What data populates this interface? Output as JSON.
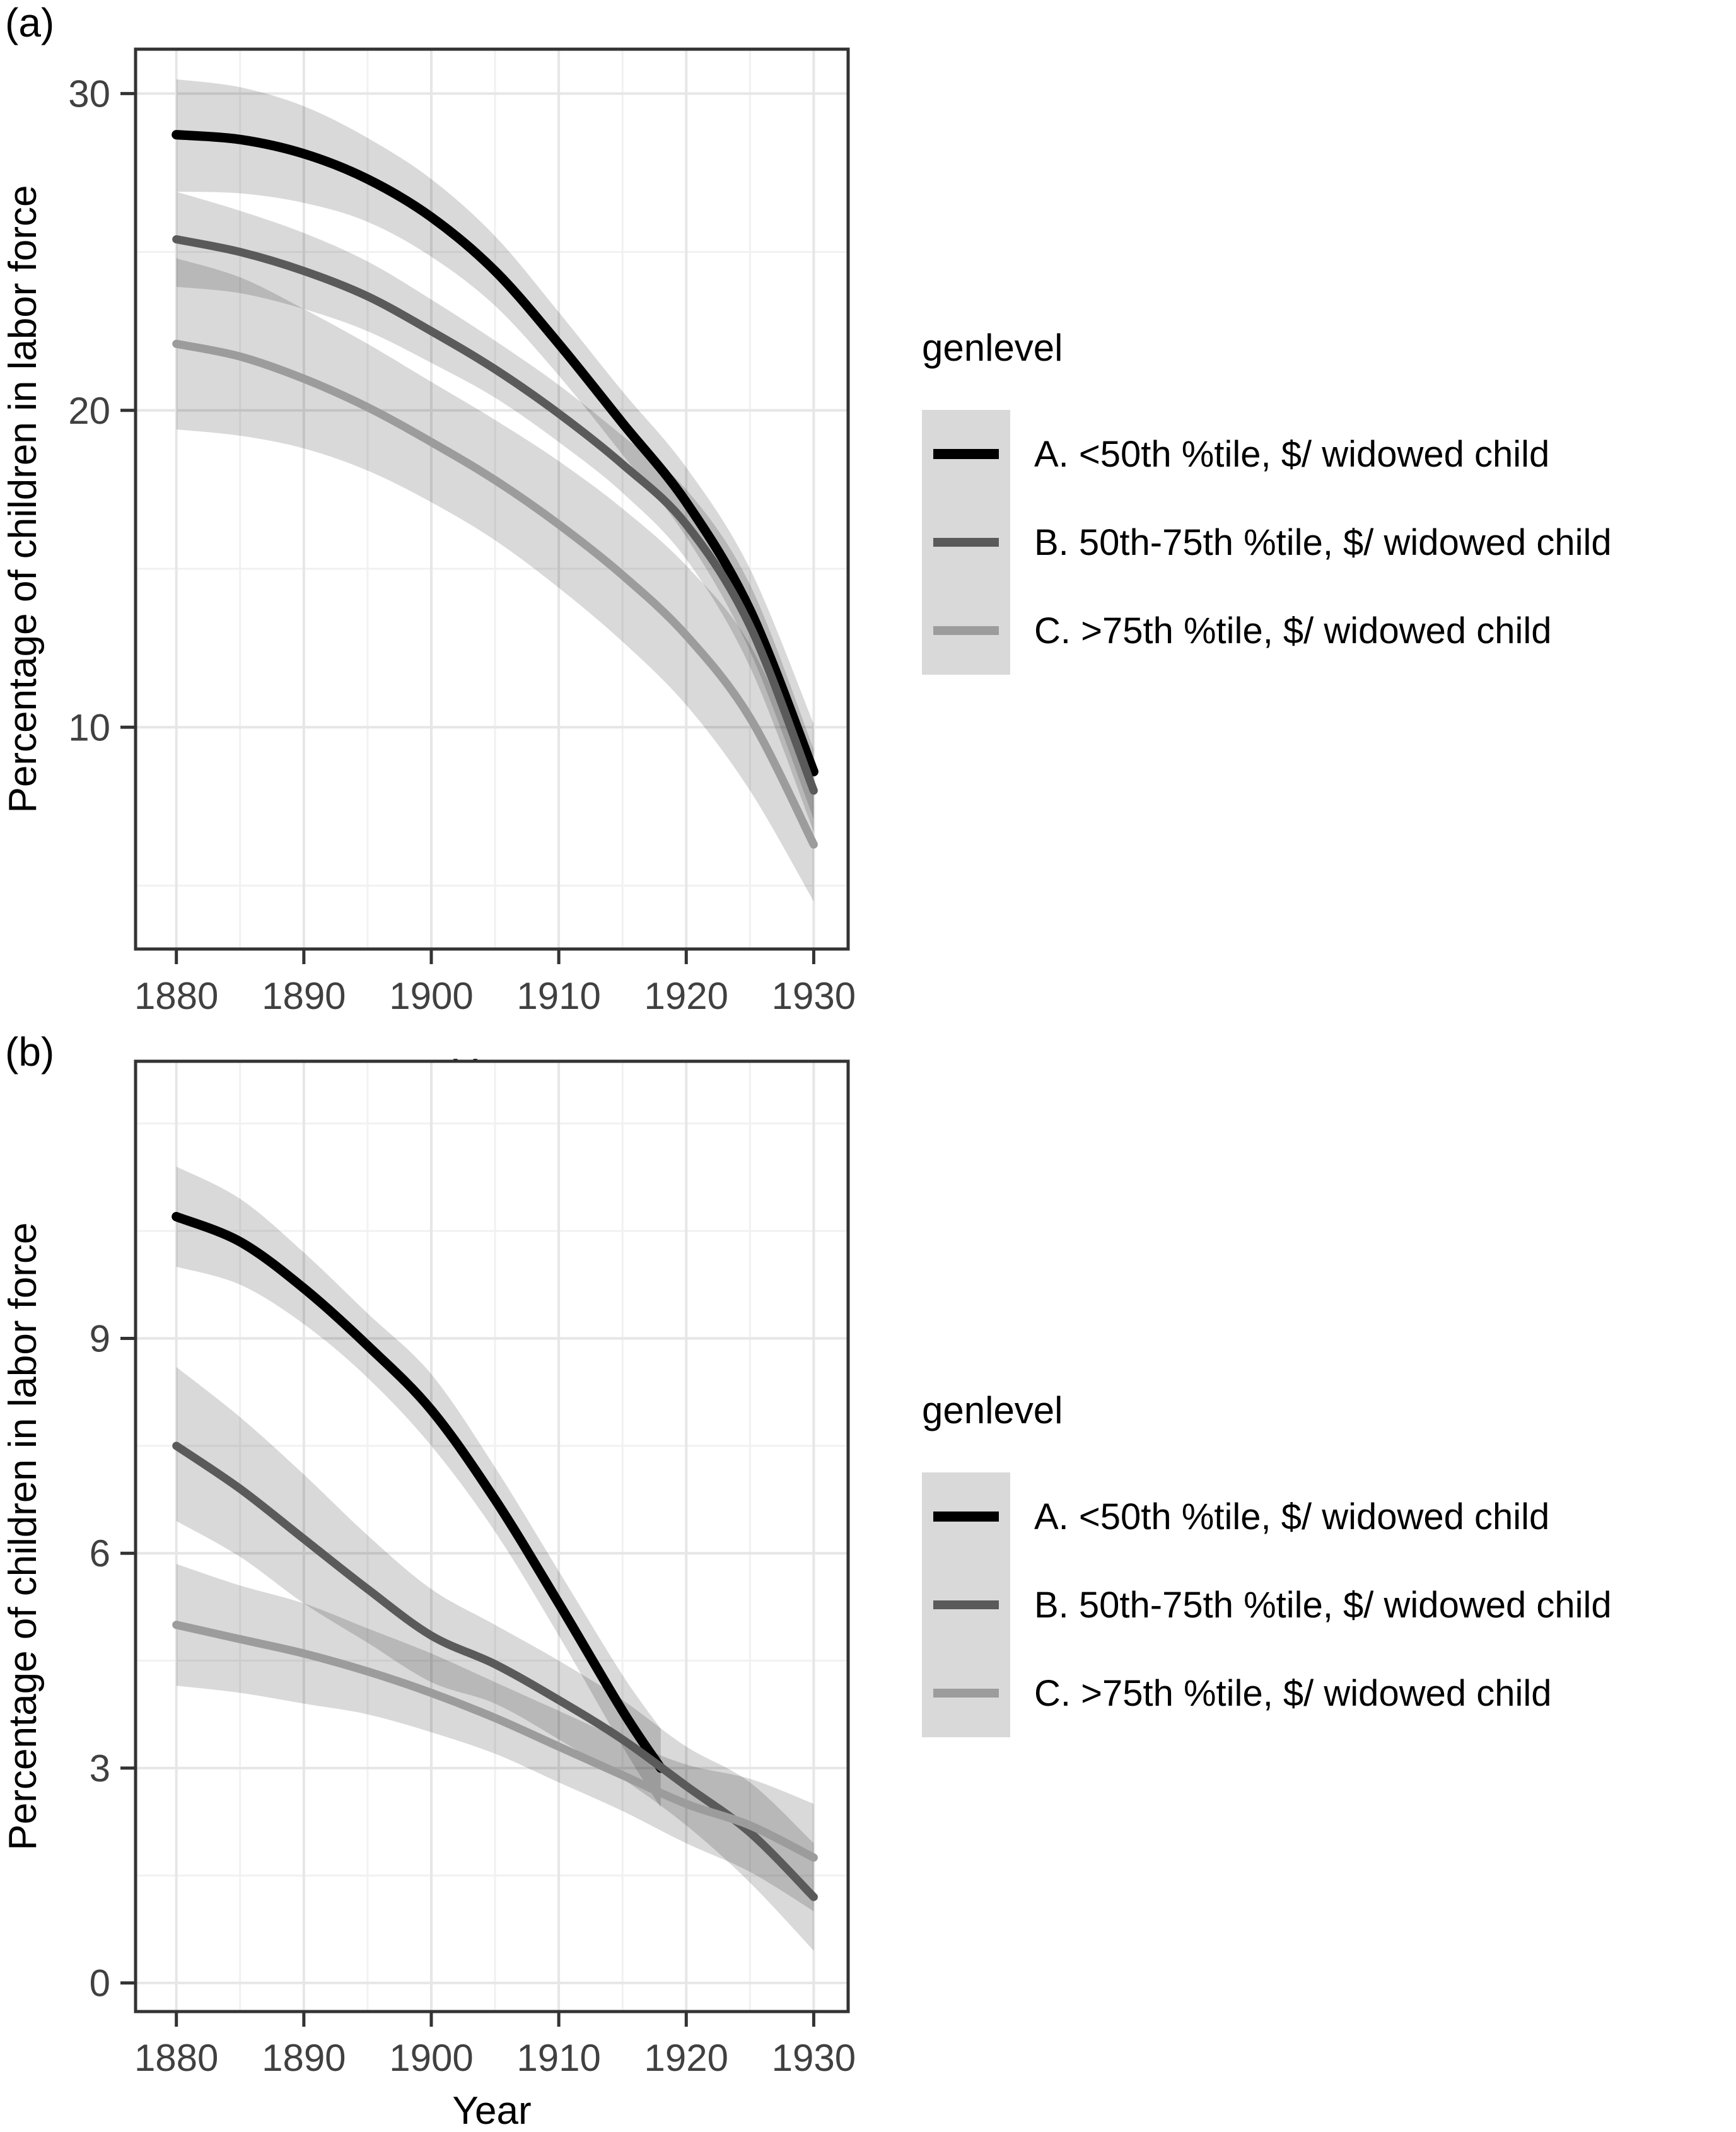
{
  "page": {
    "background": "#ffffff"
  },
  "styles": {
    "grid_major": "#e6e6e6",
    "grid_minor": "#f1f1f1",
    "panel_border": "#333333",
    "tick_color": "#333333",
    "tick_label_color": "#404040",
    "axis_title_color": "#000000",
    "ribbon_fill": "rgba(0,0,0,0.15)",
    "legend_key_fill": "#d9d9d9"
  },
  "chart_data": [
    {
      "type": "line",
      "tag": "(a)",
      "title": "",
      "xlabel": "Year",
      "ylabel": "Percentage of children in labor force",
      "xlim": [
        1876.8,
        1932.7
      ],
      "ylim": [
        3.0,
        31.4
      ],
      "x_major_ticks": [
        1880,
        1890,
        1900,
        1910,
        1920,
        1930
      ],
      "x_minor_ticks": [
        1885,
        1895,
        1905,
        1915,
        1925
      ],
      "y_major_ticks": [
        10,
        20,
        30
      ],
      "y_minor_ticks": [
        5,
        15,
        25
      ],
      "grid": true,
      "legend_title": "genlevel",
      "legend_position": "right",
      "series": [
        {
          "name": "A. <50th %tile, $/ widowed child",
          "color": "#000000",
          "line_width": 15,
          "x": [
            1880,
            1885,
            1890,
            1895,
            1900,
            1905,
            1910,
            1915,
            1920,
            1925,
            1930
          ],
          "values": [
            28.7,
            28.55,
            28.1,
            27.3,
            26.1,
            24.4,
            22.1,
            19.6,
            17.1,
            13.7,
            8.6
          ],
          "lower": [
            26.9,
            26.85,
            26.55,
            25.95,
            24.85,
            23.3,
            21.1,
            18.6,
            16.0,
            12.4,
            7.1
          ],
          "upper": [
            30.45,
            30.2,
            29.6,
            28.6,
            27.3,
            25.5,
            23.1,
            20.6,
            18.2,
            15.0,
            10.1
          ]
        },
        {
          "name": "B. 50th-75th %tile, $/ widowed child",
          "color": "#5a5a5a",
          "line_width": 13,
          "x": [
            1880,
            1885,
            1890,
            1895,
            1900,
            1905,
            1910,
            1915,
            1920,
            1925,
            1930
          ],
          "values": [
            25.4,
            25.0,
            24.4,
            23.6,
            22.5,
            21.3,
            19.9,
            18.3,
            16.4,
            13.2,
            8.0
          ],
          "lower": [
            23.9,
            23.7,
            23.2,
            22.5,
            21.5,
            20.4,
            19.0,
            17.4,
            15.3,
            11.9,
            6.7
          ],
          "upper": [
            26.9,
            26.3,
            25.6,
            24.7,
            23.5,
            22.2,
            20.8,
            19.2,
            17.5,
            14.5,
            9.3
          ]
        },
        {
          "name": "C. >75th %tile, $/ widowed child",
          "color": "#9c9c9c",
          "line_width": 13,
          "x": [
            1880,
            1885,
            1890,
            1895,
            1900,
            1905,
            1910,
            1915,
            1920,
            1925,
            1930
          ],
          "values": [
            22.1,
            21.7,
            21.0,
            20.1,
            19.0,
            17.8,
            16.4,
            14.8,
            12.9,
            10.3,
            6.3
          ],
          "lower": [
            19.4,
            19.2,
            18.8,
            18.1,
            17.1,
            15.9,
            14.4,
            12.7,
            10.7,
            8.0,
            4.5
          ],
          "upper": [
            24.8,
            24.2,
            23.2,
            22.1,
            20.9,
            19.7,
            18.4,
            16.9,
            15.1,
            12.6,
            8.1
          ]
        }
      ]
    },
    {
      "type": "line",
      "tag": "(b)",
      "title": "",
      "xlabel": "Year",
      "ylabel": "Percentage of children in labor force",
      "xlim": [
        1876.8,
        1932.7
      ],
      "ylim": [
        -0.4,
        12.87
      ],
      "x_major_ticks": [
        1880,
        1890,
        1900,
        1910,
        1920,
        1930
      ],
      "x_minor_ticks": [
        1885,
        1895,
        1905,
        1915,
        1925
      ],
      "y_major_ticks": [
        0,
        3,
        6,
        9
      ],
      "y_minor_ticks": [
        1.5,
        4.5,
        7.5,
        10.5,
        12
      ],
      "grid": true,
      "legend_title": "genlevel",
      "legend_position": "right",
      "series": [
        {
          "name": "A. <50th %tile, $/ widowed child",
          "color": "#000000",
          "line_width": 15,
          "x": [
            1880,
            1885,
            1890,
            1895,
            1900,
            1905,
            1910,
            1915,
            1918
          ],
          "values": [
            10.7,
            10.35,
            9.7,
            8.9,
            8.0,
            6.75,
            5.3,
            3.8,
            3.0
          ],
          "lower": [
            10.0,
            9.75,
            9.2,
            8.45,
            7.5,
            6.3,
            4.85,
            3.3,
            2.45
          ],
          "upper": [
            11.4,
            10.95,
            10.2,
            9.35,
            8.5,
            7.2,
            5.75,
            4.3,
            3.55
          ]
        },
        {
          "name": "B. 50th-75th %tile, $/ widowed child",
          "color": "#5a5a5a",
          "line_width": 13,
          "x": [
            1880,
            1885,
            1890,
            1895,
            1900,
            1905,
            1910,
            1915,
            1920,
            1925,
            1930
          ],
          "values": [
            7.5,
            6.9,
            6.2,
            5.5,
            4.85,
            4.45,
            3.95,
            3.4,
            2.75,
            2.1,
            1.2
          ],
          "lower": [
            6.45,
            5.95,
            5.3,
            4.75,
            4.2,
            3.9,
            3.4,
            2.85,
            2.2,
            1.4,
            0.45
          ],
          "upper": [
            8.6,
            7.9,
            7.1,
            6.25,
            5.5,
            5.0,
            4.5,
            3.95,
            3.3,
            2.8,
            1.95
          ]
        },
        {
          "name": "C. >75th %tile, $/ widowed child",
          "color": "#9c9c9c",
          "line_width": 13,
          "x": [
            1880,
            1885,
            1890,
            1895,
            1900,
            1905,
            1910,
            1915,
            1920,
            1925,
            1930
          ],
          "values": [
            5.0,
            4.8,
            4.6,
            4.35,
            4.05,
            3.7,
            3.3,
            2.9,
            2.5,
            2.2,
            1.75
          ],
          "lower": [
            4.15,
            4.05,
            3.9,
            3.75,
            3.5,
            3.2,
            2.8,
            2.4,
            1.95,
            1.55,
            1.0
          ],
          "upper": [
            5.85,
            5.55,
            5.3,
            4.95,
            4.6,
            4.2,
            3.8,
            3.4,
            3.05,
            2.85,
            2.5
          ]
        }
      ]
    }
  ]
}
